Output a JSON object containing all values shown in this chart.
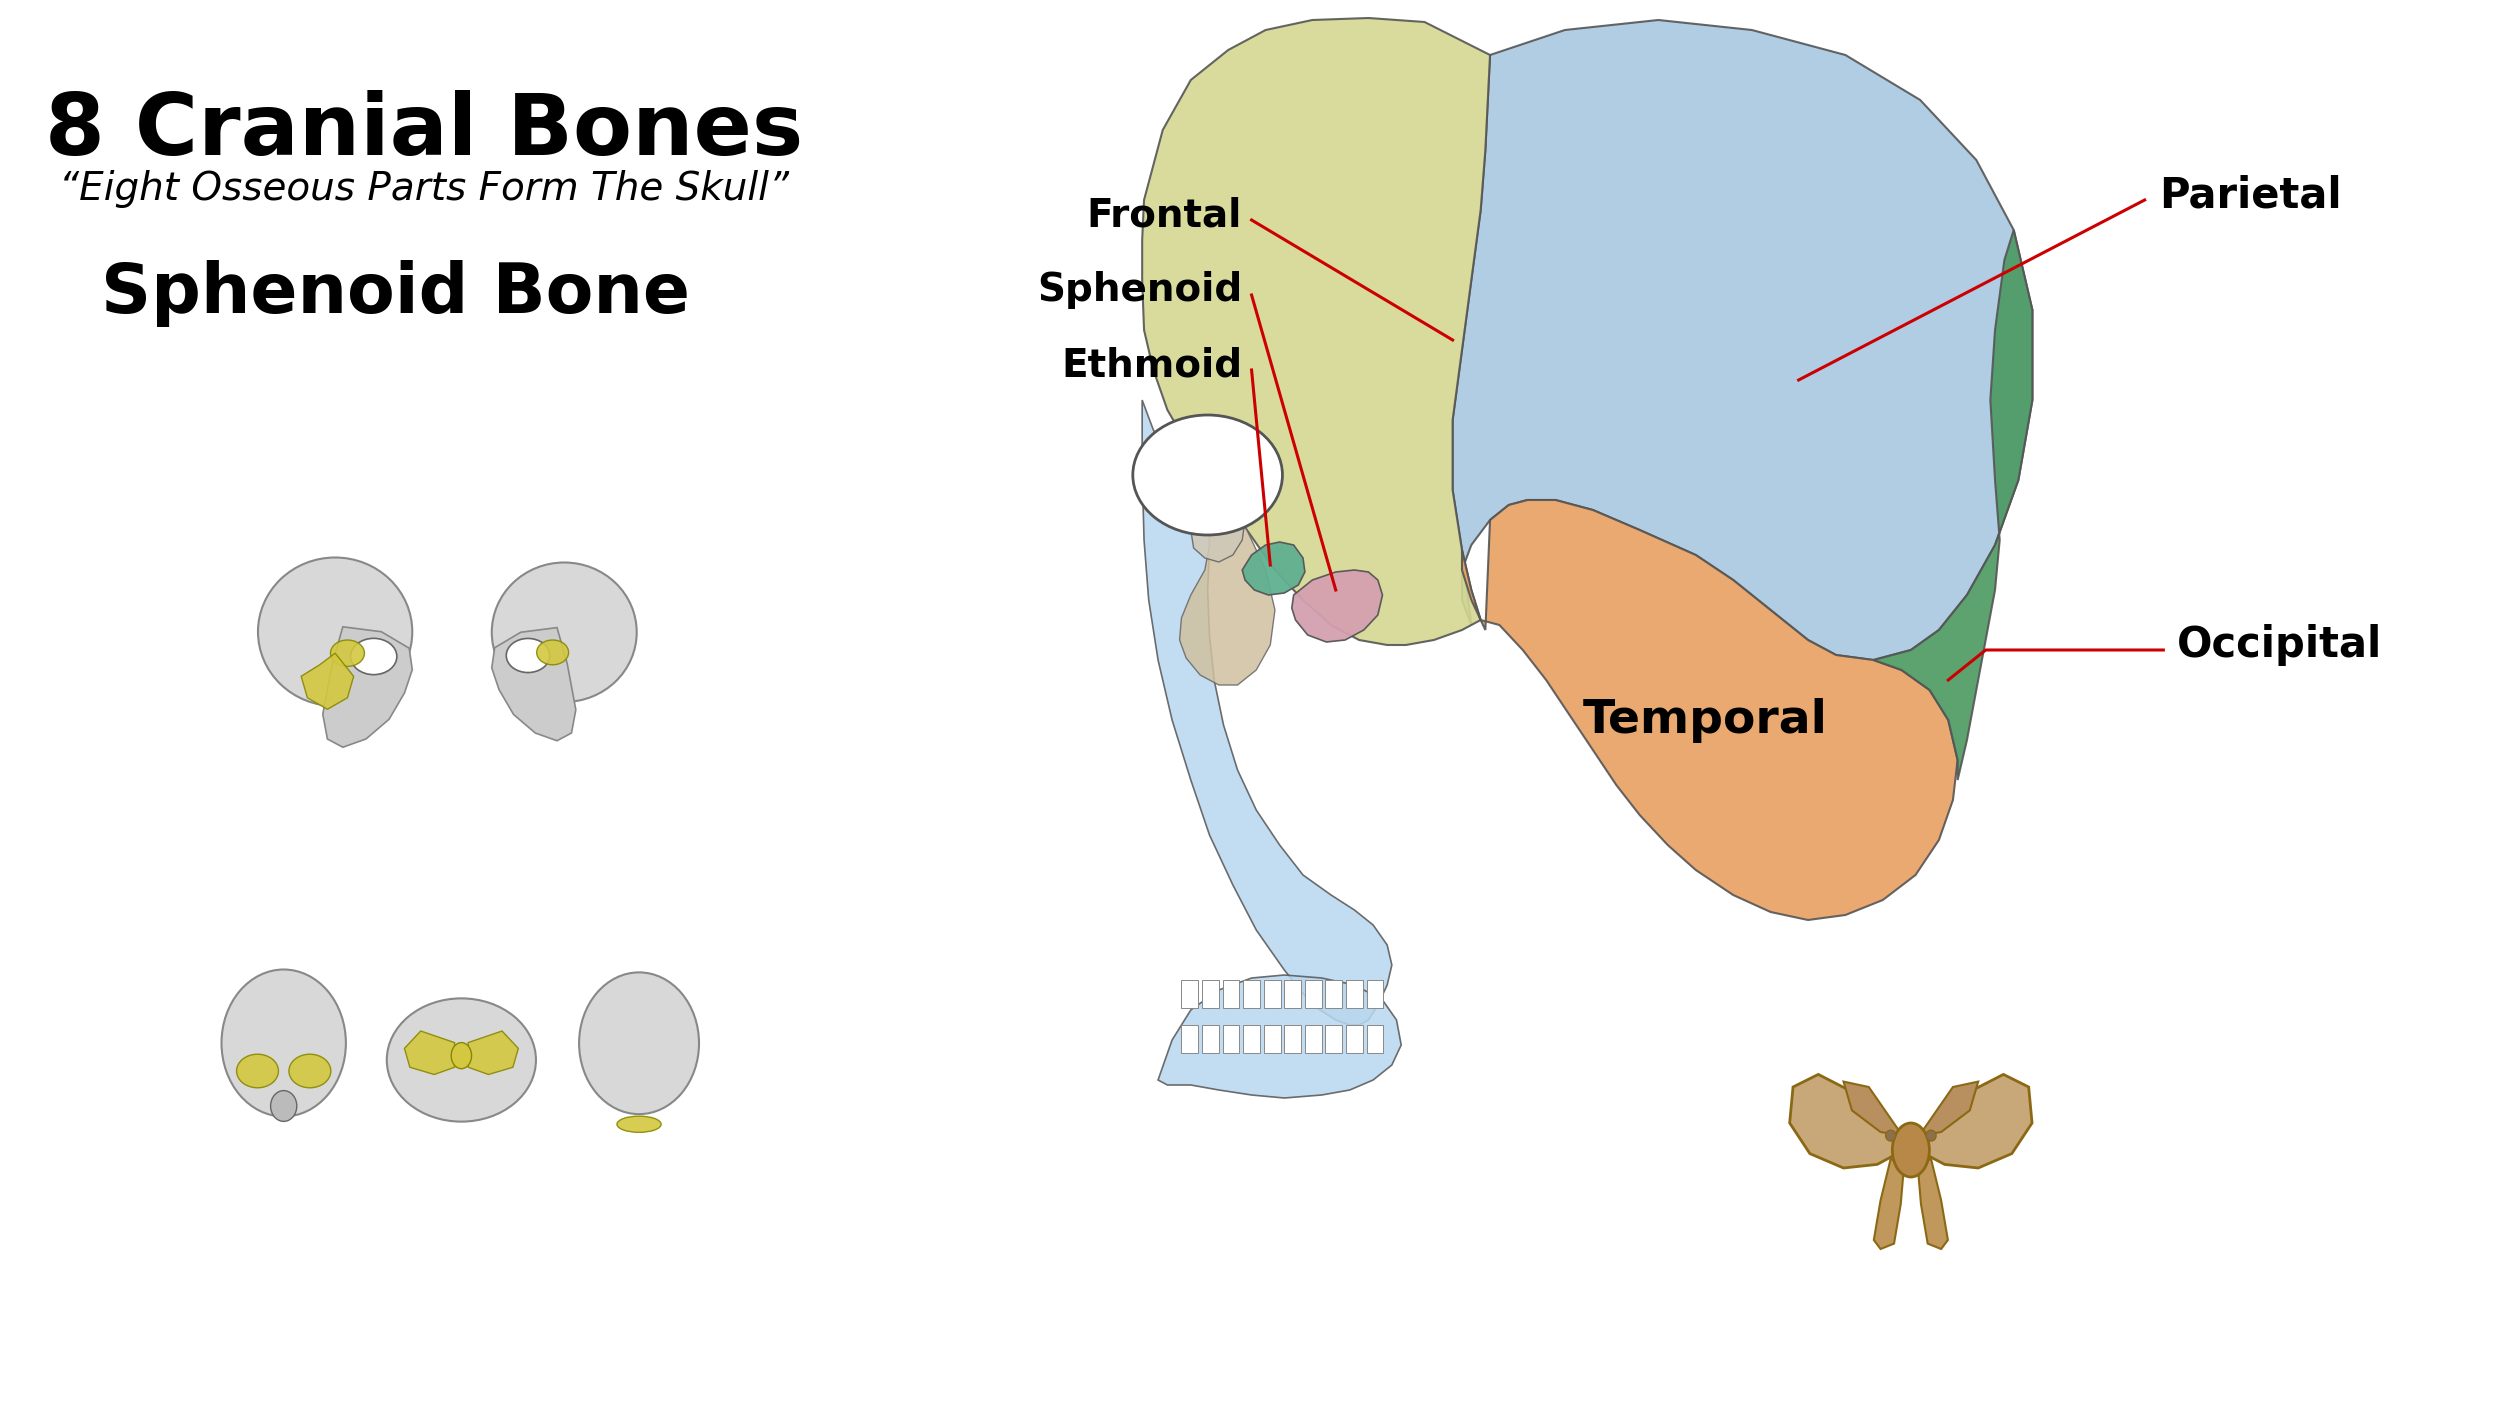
{
  "title": "8 Cranial Bones",
  "subtitle": "“Eight Osseous Parts Form The Skull”",
  "sphenoid_label": "Sphenoid Bone",
  "background_color": "#ffffff",
  "title_fontsize": 62,
  "subtitle_fontsize": 28,
  "sphenoid_fontsize": 50,
  "label_fontsize": 26,
  "temporal_fontsize": 34,
  "line_color": "#cc0000",
  "label_color": "#000000",
  "colors": {
    "parietal": "#a8c8e0",
    "frontal": "#d4d890",
    "temporal": "#e8a060",
    "occipital": "#4a9960",
    "sphenoid": "#d4a0b0",
    "ethmoid": "#60b090",
    "maxilla": "#b8d8f0",
    "mandible": "#b8d8f0",
    "nasal": "#d0e0a0",
    "zygomatic": "#d0c0a0"
  }
}
